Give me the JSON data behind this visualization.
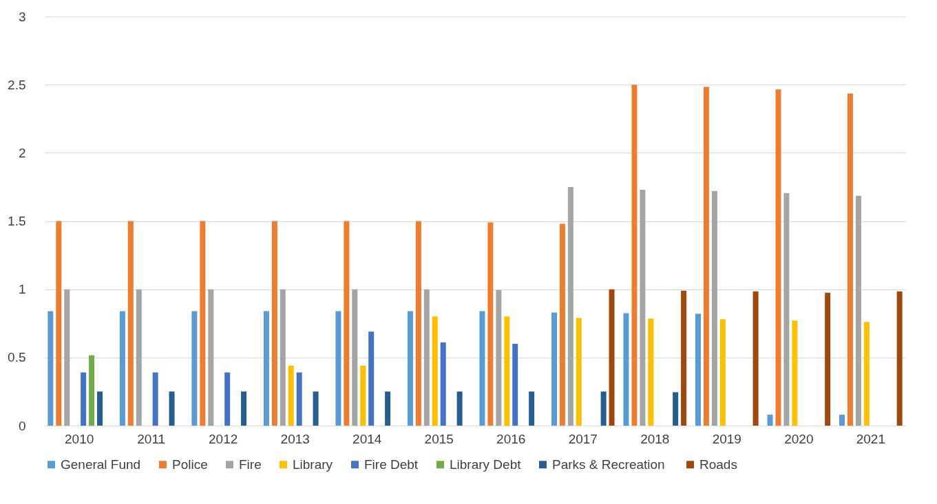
{
  "chart_data": {
    "type": "bar",
    "categories": [
      "2010",
      "2011",
      "2012",
      "2013",
      "2014",
      "2015",
      "2016",
      "2017",
      "2018",
      "2019",
      "2020",
      "2021"
    ],
    "series": [
      {
        "name": "General Fund",
        "color": "#5b9bd5",
        "values": [
          0.84,
          0.84,
          0.84,
          0.84,
          0.84,
          0.84,
          0.84,
          0.83,
          0.825,
          0.82,
          0.08,
          0.08
        ]
      },
      {
        "name": "Police",
        "color": "#ed7d31",
        "values": [
          1.5,
          1.5,
          1.5,
          1.5,
          1.5,
          1.5,
          1.49,
          1.48,
          2.5,
          2.485,
          2.465,
          2.435
        ]
      },
      {
        "name": "Fire",
        "color": "#a5a5a5",
        "values": [
          1.0,
          1.0,
          1.0,
          1.0,
          1.0,
          1.0,
          0.995,
          1.75,
          1.73,
          1.72,
          1.705,
          1.685
        ]
      },
      {
        "name": "Library",
        "color": "#ffc000",
        "values": [
          null,
          null,
          null,
          0.44,
          0.44,
          0.8,
          0.8,
          0.79,
          0.785,
          0.78,
          0.77,
          0.76
        ]
      },
      {
        "name": "Fire Debt",
        "color": "#4472c4",
        "values": [
          0.39,
          0.39,
          0.39,
          0.39,
          0.69,
          0.61,
          0.6,
          null,
          null,
          null,
          null,
          null
        ]
      },
      {
        "name": "Library Debt",
        "color": "#70ad47",
        "values": [
          0.515,
          null,
          null,
          null,
          null,
          null,
          null,
          null,
          null,
          null,
          null,
          null
        ]
      },
      {
        "name": "Parks &  Recreation",
        "color": "#255e91",
        "values": [
          0.25,
          0.25,
          0.25,
          0.25,
          0.25,
          0.25,
          0.25,
          0.25,
          0.245,
          null,
          null,
          null
        ]
      },
      {
        "name": "Roads",
        "color": "#9e480e",
        "values": [
          null,
          null,
          null,
          null,
          null,
          null,
          null,
          1.0,
          0.99,
          0.985,
          0.975,
          0.985
        ]
      }
    ],
    "ylim": [
      0,
      3
    ],
    "yticks": [
      0,
      0.5,
      1,
      1.5,
      2,
      2.5,
      3
    ],
    "grid": "y",
    "legend": "bottom"
  }
}
